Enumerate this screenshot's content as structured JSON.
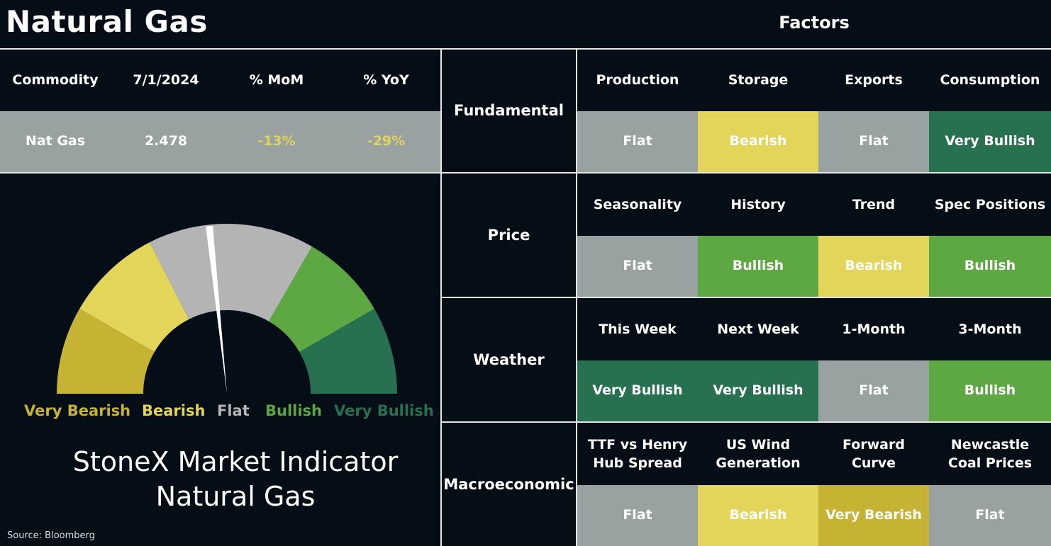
{
  "title": "Natural Gas",
  "factors_title": "Factors",
  "colors": {
    "background": "#050d17",
    "flat": "#9aa2a1",
    "bearish": "#e3d45a",
    "very_bearish": "#c7b333",
    "bullish": "#5ea843",
    "very_bullish": "#277050",
    "gauge_flat": "#b4b4b4"
  },
  "commodity_table": {
    "headers": [
      "Commodity",
      "7/1/2024",
      "% MoM",
      "% YoY"
    ],
    "row": [
      "Nat Gas",
      "2.478",
      "-13%",
      "-29%"
    ]
  },
  "gauge": {
    "labels": [
      "Very Bearish",
      "Bearish",
      "Flat",
      "Bullish",
      "Very Bullish"
    ],
    "needle_level": "Flat",
    "caption_line1": "StoneX Market Indicator",
    "caption_line2": "Natural Gas"
  },
  "source": "Source: Bloomberg",
  "factor_groups": [
    {
      "name": "Fundamental",
      "factors": [
        {
          "label": "Production",
          "rating": "Flat",
          "color": "#9aa2a1"
        },
        {
          "label": "Storage",
          "rating": "Bearish",
          "color": "#e3d45a"
        },
        {
          "label": "Exports",
          "rating": "Flat",
          "color": "#9aa2a1"
        },
        {
          "label": "Consumption",
          "rating": "Very Bullish",
          "color": "#277050"
        }
      ]
    },
    {
      "name": "Price",
      "factors": [
        {
          "label": "Seasonality",
          "rating": "Flat",
          "color": "#9aa2a1"
        },
        {
          "label": "History",
          "rating": "Bullish",
          "color": "#5ea843"
        },
        {
          "label": "Trend",
          "rating": "Bearish",
          "color": "#e3d45a"
        },
        {
          "label": "Spec Positions",
          "rating": "Bullish",
          "color": "#5ea843"
        }
      ]
    },
    {
      "name": "Weather",
      "factors": [
        {
          "label": "This Week",
          "rating": "Very Bullish",
          "color": "#277050"
        },
        {
          "label": "Next Week",
          "rating": "Very Bullish",
          "color": "#277050"
        },
        {
          "label": "1-Month",
          "rating": "Flat",
          "color": "#9aa2a1"
        },
        {
          "label": "3-Month",
          "rating": "Bullish",
          "color": "#5ea843"
        }
      ]
    },
    {
      "name": "Macroeconomic",
      "factors": [
        {
          "label": "TTF vs Henry Hub Spread",
          "rating": "Flat",
          "color": "#9aa2a1"
        },
        {
          "label": "US Wind Generation",
          "rating": "Bearish",
          "color": "#e3d45a"
        },
        {
          "label": "Forward Curve",
          "rating": "Very Bearish",
          "color": "#c7b333"
        },
        {
          "label": "Newcastle Coal Prices",
          "rating": "Flat",
          "color": "#9aa2a1"
        }
      ]
    }
  ]
}
